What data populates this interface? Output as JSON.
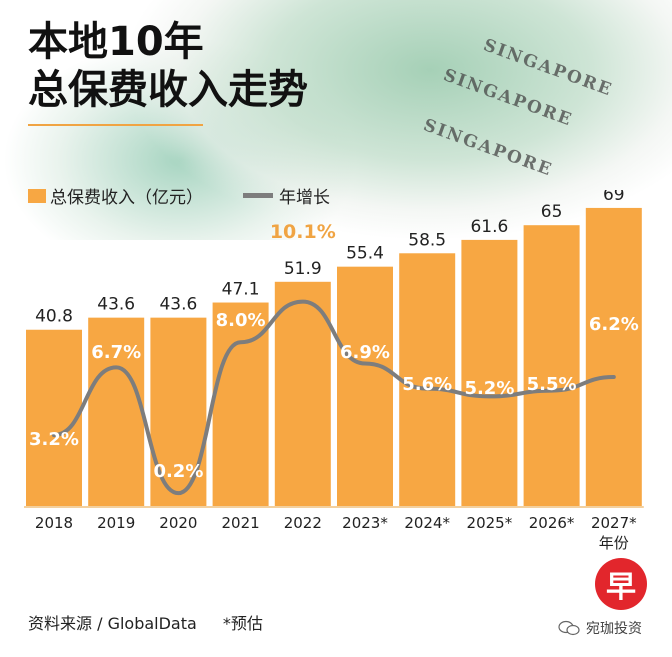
{
  "title_line1": "本地10年",
  "title_line2": "总保费收入走势",
  "legend": {
    "bars": "总保费收入（亿元）",
    "line": "年增长"
  },
  "banknote_text": "SINGAPORE",
  "chart_data": {
    "type": "bar",
    "categories": [
      "2018",
      "2019",
      "2020",
      "2021",
      "2022",
      "2023*",
      "2024*",
      "2025*",
      "2026*",
      "2027*"
    ],
    "x_unit_label": "年份",
    "series": [
      {
        "name": "总保费收入（亿元）",
        "type": "bar",
        "values": [
          40.8,
          43.6,
          43.6,
          47.1,
          51.9,
          55.4,
          58.5,
          61.6,
          65,
          69
        ],
        "color": "#f7a743"
      },
      {
        "name": "年增长",
        "type": "line",
        "values": [
          3.2,
          6.7,
          0.2,
          8.0,
          10.1,
          6.9,
          5.6,
          5.2,
          5.5,
          6.2
        ],
        "unit": "%",
        "color": "#7d7d7d"
      }
    ],
    "bar_labels": [
      "40.8",
      "43.6",
      "43.6",
      "47.1",
      "51.9",
      "55.4",
      "58.5",
      "61.6",
      "65",
      "69"
    ],
    "growth_labels": [
      "3.2%",
      "6.7%",
      "0.2%",
      "8.0%",
      "10.1%",
      "6.9%",
      "5.6%",
      "5.2%",
      "5.5%",
      "6.2%"
    ],
    "highlight_index": 4,
    "highlight_color": "#f0a443"
  },
  "footer": {
    "source": "资料来源 / GlobalData",
    "note": "*预估"
  },
  "logo_char": "早",
  "watermark": "宛珈投资"
}
